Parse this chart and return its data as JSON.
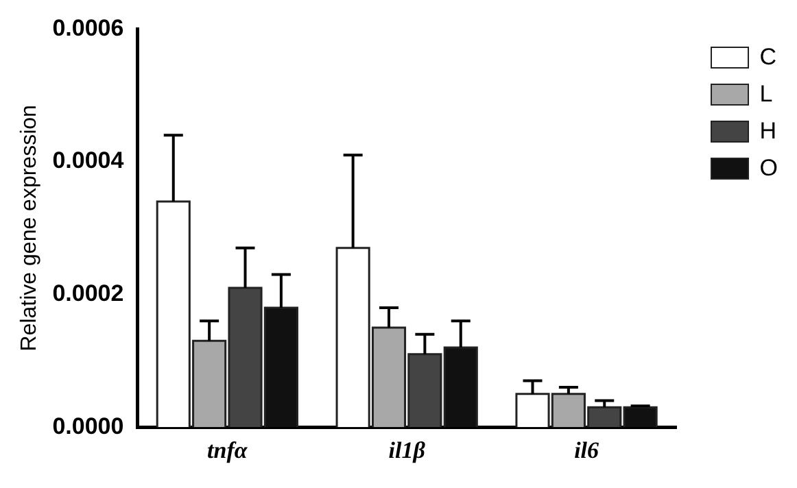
{
  "chart_data": {
    "type": "bar",
    "ylabel": "Relative gene expression",
    "categories": [
      "tnfα",
      "il1β",
      "il6"
    ],
    "series": [
      {
        "name": "C",
        "color": "#ffffff",
        "values": [
          0.00034,
          0.00027,
          5e-05
        ],
        "errors": [
          0.0001,
          0.00014,
          2e-05
        ]
      },
      {
        "name": "L",
        "color": "#a8a8a8",
        "values": [
          0.00013,
          0.00015,
          5e-05
        ],
        "errors": [
          3e-05,
          3e-05,
          1e-05
        ]
      },
      {
        "name": "H",
        "color": "#444444",
        "values": [
          0.00021,
          0.00011,
          3e-05
        ],
        "errors": [
          6e-05,
          3e-05,
          1e-05
        ]
      },
      {
        "name": "O",
        "color": "#111111",
        "values": [
          0.00018,
          0.00012,
          3e-05
        ],
        "errors": [
          5e-05,
          4e-05,
          2e-06
        ]
      }
    ],
    "ylim": [
      0,
      0.0006
    ],
    "yticks": [
      {
        "value": 0,
        "label": "0.0000"
      },
      {
        "value": 0.0002,
        "label": "0.0002"
      },
      {
        "value": 0.0004,
        "label": "0.0004"
      },
      {
        "value": 0.0006,
        "label": "0.0006"
      }
    ],
    "grid": false,
    "legend": "top right"
  }
}
